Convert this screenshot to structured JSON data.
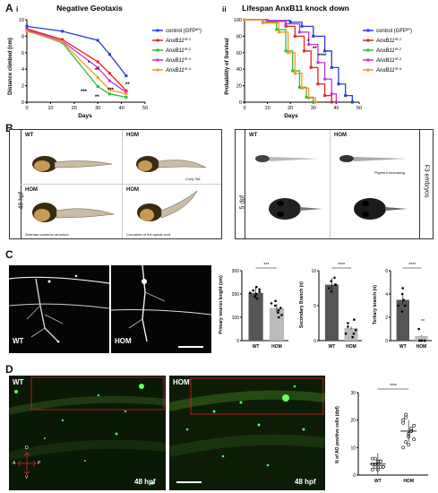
{
  "panel_labels": {
    "A": "A",
    "B": "B",
    "C": "C",
    "D": "D"
  },
  "sub_labels": {
    "i": "i",
    "ii": "ii"
  },
  "colors": {
    "blue": "#2a3bd6",
    "red": "#e1261c",
    "green": "#2dbb3a",
    "purple": "#c037d6",
    "orange": "#f39a2b"
  },
  "legend": [
    "control (GFP",
    "AnxB11",
    "AnxB11",
    "AnxB11",
    "AnxB11"
  ],
  "legend_sup": [
    "IR",
    "IR-1",
    "IR-2",
    "IR-3",
    "IR-4"
  ],
  "legend_tail": [
    ")",
    "",
    "",
    "",
    ""
  ],
  "chart_data": [
    {
      "type": "line",
      "title": "Negative Geotaxis",
      "xlabel": "Days",
      "ylabel": "Distance climbed (cm)",
      "xlim": [
        0,
        50
      ],
      "ylim": [
        0,
        10
      ],
      "xticks": [
        "0",
        "10",
        "20",
        "30",
        "40",
        "50"
      ],
      "yticks": [
        "0",
        "2",
        "4",
        "6",
        "8",
        "10"
      ],
      "x": [
        0,
        15,
        30,
        35,
        42
      ],
      "series": [
        {
          "name": "control (GFPIR)",
          "values": [
            9.2,
            8.6,
            7.5,
            5.8,
            3.2
          ]
        },
        {
          "name": "AnxB11IR-1",
          "values": [
            8.9,
            7.6,
            4.9,
            3.5,
            1.4
          ]
        },
        {
          "name": "AnxB11IR-2",
          "values": [
            8.7,
            7.2,
            1.9,
            1.0,
            0.6
          ]
        },
        {
          "name": "AnxB11IR-3",
          "values": [
            8.8,
            7.4,
            4.2,
            2.6,
            1.2
          ]
        },
        {
          "name": "AnxB11IR-4",
          "values": [
            8.6,
            7.3,
            3.0,
            1.5,
            1.0
          ]
        }
      ],
      "annotations": [
        "*",
        "**",
        "***",
        "**",
        "***",
        "**"
      ],
      "legend_position": "right"
    },
    {
      "type": "line",
      "title": "Lifespan AnxB11 knock down",
      "xlabel": "Days",
      "ylabel": "Probability of Survival",
      "xlim": [
        0,
        50
      ],
      "ylim": [
        0,
        100
      ],
      "xticks": [
        "0",
        "10",
        "20",
        "30",
        "40",
        "50"
      ],
      "yticks": [
        "0",
        "20",
        "40",
        "60",
        "80",
        "100"
      ],
      "series": [
        {
          "name": "control (GFPIR)",
          "x": [
            0,
            10,
            20,
            25,
            30,
            35,
            38,
            41,
            44,
            47
          ],
          "values": [
            100,
            99,
            97,
            92,
            80,
            62,
            42,
            22,
            8,
            0
          ]
        },
        {
          "name": "AnxB11IR-1",
          "x": [
            0,
            10,
            18,
            22,
            26,
            29,
            32,
            35,
            38
          ],
          "values": [
            100,
            98,
            92,
            80,
            62,
            42,
            22,
            8,
            0
          ]
        },
        {
          "name": "AnxB11IR-2",
          "x": [
            0,
            8,
            14,
            18,
            21,
            24,
            27,
            30
          ],
          "values": [
            100,
            97,
            88,
            62,
            38,
            18,
            6,
            0
          ]
        },
        {
          "name": "AnxB11IR-3",
          "x": [
            0,
            10,
            18,
            24,
            28,
            32,
            35,
            38,
            40
          ],
          "values": [
            100,
            99,
            95,
            85,
            70,
            48,
            28,
            10,
            0
          ]
        },
        {
          "name": "AnxB11IR-4",
          "x": [
            0,
            8,
            15,
            19,
            22,
            25,
            28,
            31
          ],
          "values": [
            100,
            96,
            85,
            60,
            35,
            17,
            5,
            0
          ]
        }
      ],
      "annotations": [
        "*",
        "**",
        "****"
      ],
      "legend_position": "right"
    },
    {
      "type": "bar",
      "categories": [
        "WT",
        "HOM"
      ],
      "values": [
        205,
        140
      ],
      "ylabel": "Primary neuron lenght (um)",
      "ylim": [
        0,
        300
      ],
      "yticks": [
        "0",
        "100",
        "200",
        "300"
      ],
      "significance": "***"
    },
    {
      "type": "bar",
      "categories": [
        "WT",
        "HOM"
      ],
      "values": [
        8,
        1.8
      ],
      "ylabel": "Secondary Branch (n)",
      "ylim": [
        0,
        10
      ],
      "yticks": [
        "0",
        "5",
        "10"
      ],
      "significance": "****"
    },
    {
      "type": "bar",
      "categories": [
        "WT",
        "HOM"
      ],
      "values": [
        3.5,
        0.4
      ],
      "ylabel": "Tertiary branch (n)",
      "ylim": [
        0,
        6
      ],
      "yticks": [
        "0",
        "2",
        "4",
        "6"
      ],
      "significance": "****",
      "annotations": [
        "**"
      ]
    },
    {
      "type": "scatter",
      "categories": [
        "WT",
        "HOM"
      ],
      "means": [
        4,
        16
      ],
      "ylabel": "N of AO positive cells (dpf)",
      "ylim": [
        0,
        30
      ],
      "yticks": [
        "0",
        "10",
        "20",
        "30"
      ],
      "significance": "****"
    }
  ],
  "panel_b": {
    "left_side": "48 hpf",
    "right_side_dpf": "5 dpf",
    "right_edge": "F3 embryos",
    "wt": "WT",
    "hom": "HOM",
    "captions": [
      "Curly Tail",
      "Aberrant posterior structure",
      "Curvature of the spinal cord",
      "Pigment increasing"
    ]
  },
  "panel_c": {
    "wt": "WT",
    "hom": "HOM"
  },
  "panel_d": {
    "wt": "WT",
    "hom": "HOM",
    "time1": "48 hpf",
    "time2": "48 hpf",
    "axis": {
      "d": "D",
      "v": "V",
      "a": "A",
      "p": "P"
    }
  }
}
